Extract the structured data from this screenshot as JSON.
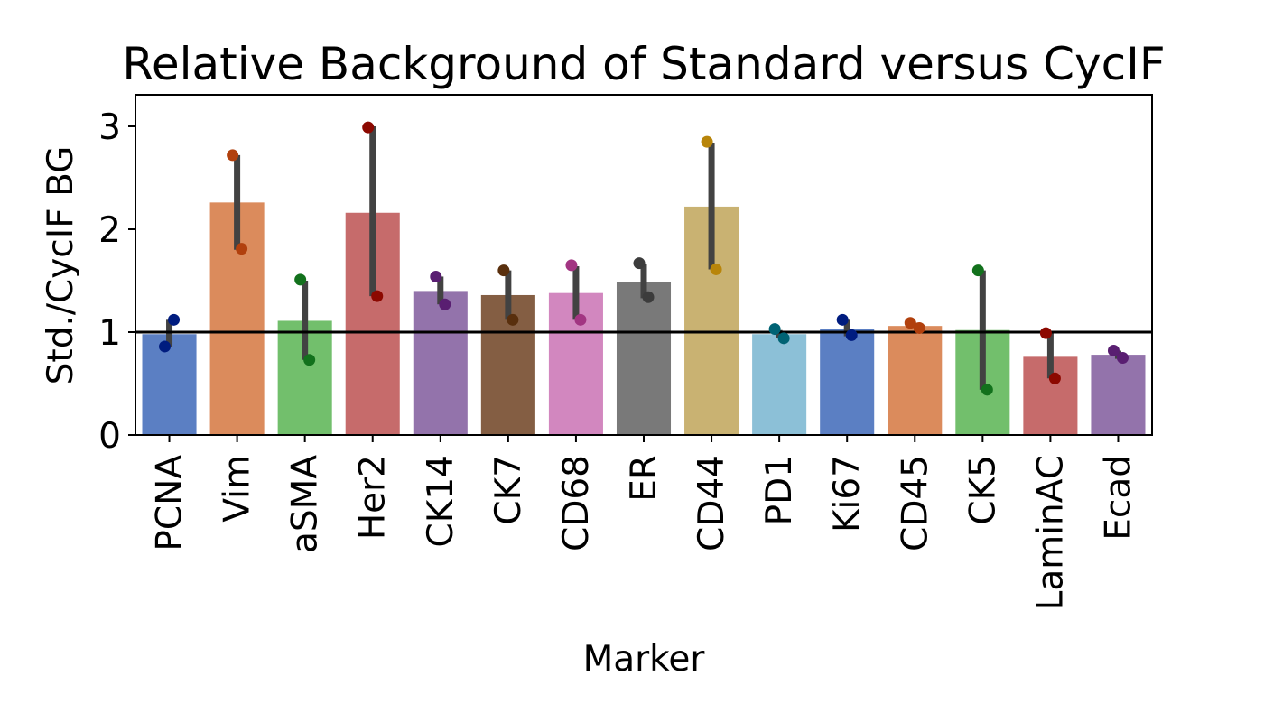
{
  "chart_data": {
    "type": "bar",
    "title": "Relative Background of Standard versus CycIF",
    "xlabel": "Marker",
    "ylabel": "Std./CycIF BG",
    "ylim": [
      0,
      3.3
    ],
    "yticks": [
      0,
      1,
      2,
      3
    ],
    "reference_line": 1,
    "grid": false,
    "categories": [
      "PCNA",
      "Vim",
      "aSMA",
      "Her2",
      "CK14",
      "CK7",
      "CD68",
      "ER",
      "CD44",
      "PD1",
      "Ki67",
      "CD45",
      "CK5",
      "LaminAC",
      "Ecad"
    ],
    "values": [
      0.98,
      2.26,
      1.11,
      2.16,
      1.4,
      1.36,
      1.38,
      1.49,
      2.22,
      0.98,
      1.03,
      1.06,
      1.02,
      0.76,
      0.78
    ],
    "error_bars": [
      [
        0.86,
        1.12
      ],
      [
        1.8,
        2.72
      ],
      [
        0.73,
        1.5
      ],
      [
        1.35,
        3.0
      ],
      [
        1.27,
        1.54
      ],
      [
        1.12,
        1.6
      ],
      [
        1.12,
        1.64
      ],
      [
        1.33,
        1.66
      ],
      [
        1.61,
        2.84
      ],
      [
        0.94,
        1.02
      ],
      [
        0.96,
        1.12
      ],
      [
        1.04,
        1.09
      ],
      [
        0.44,
        1.6
      ],
      [
        0.55,
        0.99
      ],
      [
        0.74,
        0.82
      ]
    ],
    "points": [
      [
        0.86,
        1.12
      ],
      [
        2.72,
        1.81
      ],
      [
        1.51,
        0.73
      ],
      [
        2.99,
        1.35
      ],
      [
        1.54,
        1.27
      ],
      [
        1.6,
        1.12
      ],
      [
        1.65,
        1.12
      ],
      [
        1.67,
        1.34
      ],
      [
        2.85,
        1.61
      ],
      [
        1.03,
        0.94
      ],
      [
        1.12,
        0.97
      ],
      [
        1.09,
        1.04
      ],
      [
        1.6,
        0.44
      ],
      [
        0.99,
        0.55
      ],
      [
        0.82,
        0.75
      ]
    ],
    "bar_colors": [
      "#5b7fc3",
      "#db8b5c",
      "#72bf6c",
      "#c66b6b",
      "#9373ab",
      "#845e43",
      "#d287bf",
      "#797979",
      "#c9b272",
      "#8cc0d7",
      "#5b7fc3",
      "#db8b5c",
      "#72bf6c",
      "#c66b6b",
      "#9373ab"
    ],
    "point_colors": [
      "#001c7f",
      "#b1400d",
      "#12711c",
      "#8c0800",
      "#591e71",
      "#592f0d",
      "#a23582",
      "#3c3c3c",
      "#b8850a",
      "#006374",
      "#001c7f",
      "#b1400d",
      "#12711c",
      "#8c0800",
      "#591e71"
    ],
    "errorbar_color": "#424242"
  }
}
